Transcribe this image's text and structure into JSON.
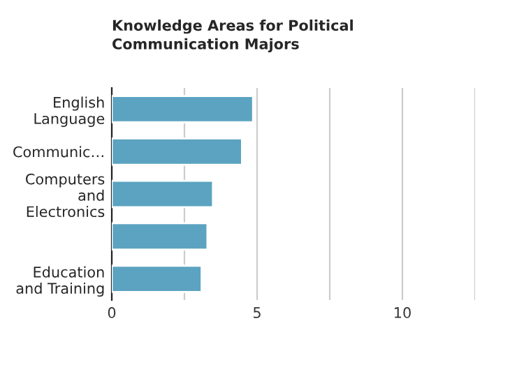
{
  "chart_data": {
    "type": "bar",
    "orientation": "horizontal",
    "title": "Knowledge Areas for Political\nCommunication Majors",
    "categories": [
      "English\nLanguage",
      "Communic…",
      "Computers\nand\nElectronics",
      null,
      "Education\nand Training"
    ],
    "values": [
      4.86,
      4.48,
      3.48,
      3.29,
      3.09
    ],
    "color": "#5ba3c0",
    "xlim": [
      0,
      12.5
    ],
    "xticks": [
      0,
      {
        "value": 2.5,
        "label": null
      },
      5,
      {
        "value": 7.5,
        "label": null
      },
      10,
      {
        "value": 12.5,
        "label": null
      }
    ],
    "grid": "x"
  }
}
